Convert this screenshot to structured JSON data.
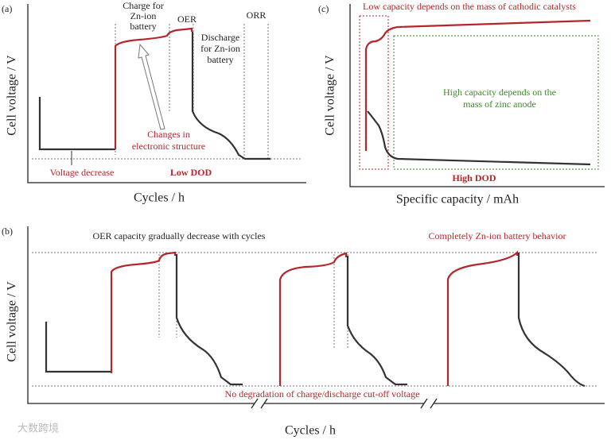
{
  "panel_a": {
    "label": "(a)",
    "y_axis": "Cell voltage / V",
    "x_axis": "Cycles / h",
    "charge": [
      "Charge for",
      "Zn-ion",
      "battery"
    ],
    "oer": "OER",
    "orr": "ORR",
    "discharge": [
      "Discharge",
      "for Zn-ion",
      "battery"
    ],
    "changes": [
      "Changes in",
      "electronic structure"
    ],
    "voltage_decrease": "Voltage decrease",
    "dod": "Low DOD"
  },
  "panel_c": {
    "label": "(c)",
    "y_axis": "Cell voltage / V",
    "x_axis": "Specific capacity / mAh",
    "low_capacity": "Low capacity depends on the mass of cathodic catalysts",
    "high_capacity": [
      "High capacity depends on the",
      "mass of zinc anode"
    ],
    "dod": "High DOD"
  },
  "panel_b": {
    "label": "(b)",
    "y_axis": "Cell voltage / V",
    "x_axis": "Cycles / h",
    "oer_note": "OER capacity gradually decrease with cycles",
    "zn_note": "Completely Zn-ion battery behavior",
    "cutoff_note": "No degradation of charge/discharge cut-off voltage"
  },
  "watermark": "大数跨境"
}
